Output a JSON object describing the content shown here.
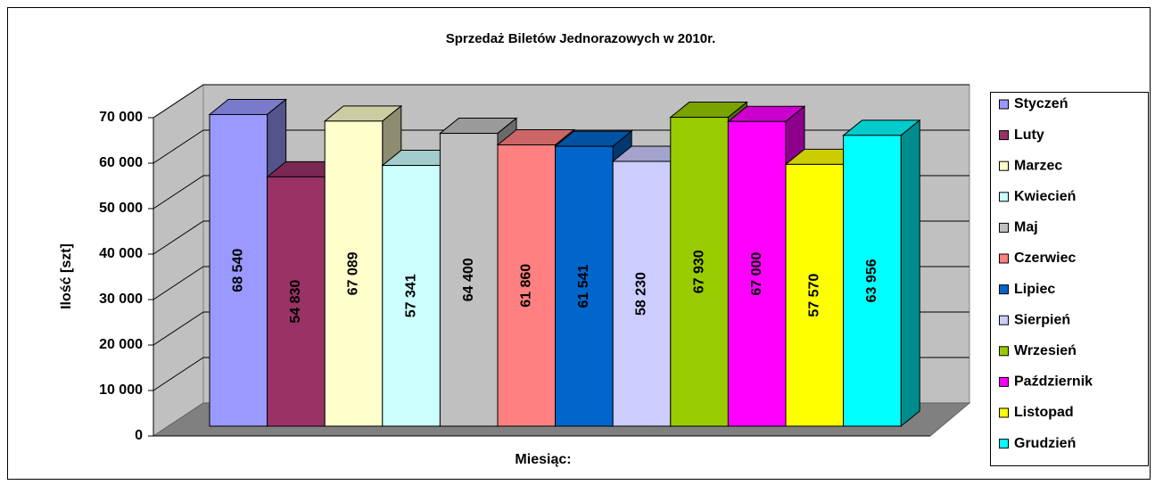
{
  "chart_data": {
    "type": "bar3d",
    "title": "Sprzedaż Biletów Jednorazowych w 2010r.",
    "x_label": "Miesiąc:",
    "y_label": "Ilość [szt]",
    "categories": [
      "Styczeń",
      "Luty",
      "Marzec",
      "Kwiecień",
      "Maj",
      "Czerwiec",
      "Lipiec",
      "Sierpień",
      "Wrzesień",
      "Październik",
      "Listopad",
      "Grudzień"
    ],
    "values": [
      68540,
      54830,
      67089,
      57341,
      64400,
      61860,
      61541,
      58230,
      67930,
      67000,
      57570,
      63956
    ],
    "value_labels": [
      "68 540",
      "54 830",
      "67 089",
      "57 341",
      "64 400",
      "61 860",
      "61 541",
      "58 230",
      "67 930",
      "67 000",
      "57 570",
      "63 956"
    ],
    "colors": [
      "#9999ff",
      "#993366",
      "#ffffcc",
      "#ccffff",
      "#c0c0c0",
      "#ff8080",
      "#0066cc",
      "#ccccff",
      "#99cc00",
      "#ff00ff",
      "#ffff00",
      "#00ffff"
    ],
    "ylim": [
      0,
      70000
    ],
    "yticks": [
      0,
      {
        "value": 10000,
        "label": "10 000"
      },
      {
        "value": 20000,
        "label": "20 000"
      },
      {
        "value": 30000,
        "label": "30 000"
      },
      {
        "value": 40000,
        "label": "40 000"
      },
      {
        "value": 50000,
        "label": "50 000"
      },
      {
        "value": 60000,
        "label": "60 000"
      },
      {
        "value": 70000,
        "label": "70 000"
      }
    ],
    "grid": true,
    "legend": "right"
  }
}
